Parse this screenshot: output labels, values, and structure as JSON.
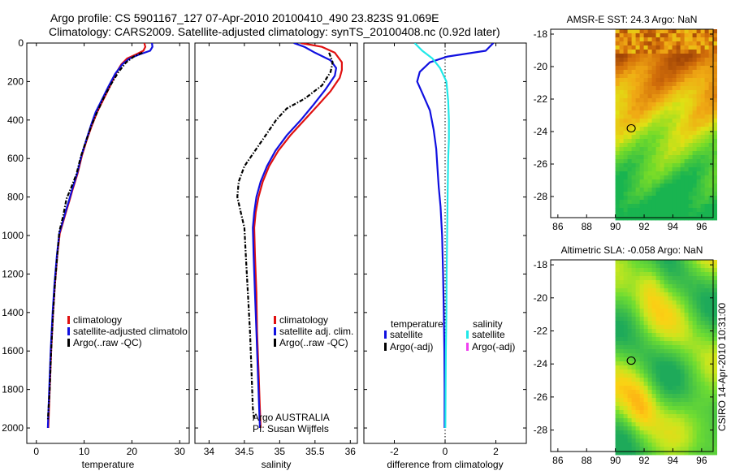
{
  "header": {
    "line1": "Argo profile: CS 5901167_127 07-Apr-2010 20100410_490 23.823S 91.069E",
    "line2": "Climatology: CARS2009. Satellite-adjusted climatology: synTS_20100408.nc (0.92d later)"
  },
  "colors": {
    "climatology": "#e01010",
    "satellite": "#1010e0",
    "argo": "#000000",
    "salinity_satellite": "#20e8e8",
    "salinity_argo": "#f040f0"
  },
  "footer": {
    "argo_owner": "Argo AUSTRALIA",
    "pi": "PI: Susan Wijffels",
    "stamp": "CSIRO 14-Apr-2010 10:31:00"
  },
  "chart_data": [
    {
      "id": "temperature",
      "type": "line",
      "xlabel": "temperature",
      "ylabel": "",
      "xlim": [
        -2,
        32
      ],
      "ylim": [
        2080,
        0
      ],
      "xticks": [
        0,
        10,
        20,
        30
      ],
      "yticks": [
        0,
        200,
        400,
        600,
        800,
        1000,
        1200,
        1400,
        1600,
        1800,
        2000
      ],
      "legend": [
        "climatology",
        "satellite-adjusted climatolo",
        "Argo(..raw -QC)"
      ],
      "series": [
        {
          "name": "climatology",
          "color": "#e01010",
          "dash": "",
          "points": [
            [
              22.6,
              0
            ],
            [
              22.8,
              20
            ],
            [
              22.4,
              40
            ],
            [
              20.8,
              60
            ],
            [
              19.0,
              80
            ],
            [
              17.8,
              110
            ],
            [
              16.6,
              160
            ],
            [
              15.3,
              230
            ],
            [
              13.9,
              300
            ],
            [
              12.7,
              360
            ],
            [
              11.6,
              430
            ],
            [
              10.6,
              500
            ],
            [
              9.6,
              580
            ],
            [
              8.6,
              680
            ],
            [
              7.6,
              760
            ],
            [
              6.9,
              820
            ],
            [
              6.3,
              870
            ],
            [
              5.6,
              930
            ],
            [
              4.9,
              990
            ],
            [
              4.4,
              1100
            ],
            [
              3.9,
              1250
            ],
            [
              3.5,
              1400
            ],
            [
              3.1,
              1600
            ],
            [
              2.8,
              1800
            ],
            [
              2.5,
              2000
            ]
          ]
        },
        {
          "name": "satellite-adjusted climatology",
          "color": "#1010e0",
          "dash": "",
          "points": [
            [
              24.2,
              0
            ],
            [
              24.3,
              20
            ],
            [
              23.8,
              40
            ],
            [
              21.5,
              60
            ],
            [
              19.5,
              80
            ],
            [
              18.0,
              110
            ],
            [
              16.5,
              160
            ],
            [
              15.0,
              230
            ],
            [
              13.6,
              300
            ],
            [
              12.4,
              360
            ],
            [
              11.4,
              430
            ],
            [
              10.5,
              500
            ],
            [
              9.5,
              580
            ],
            [
              8.5,
              680
            ],
            [
              7.5,
              760
            ],
            [
              6.8,
              820
            ],
            [
              6.2,
              870
            ],
            [
              5.5,
              930
            ],
            [
              4.8,
              990
            ],
            [
              4.3,
              1100
            ],
            [
              3.8,
              1250
            ],
            [
              3.4,
              1400
            ],
            [
              3.0,
              1600
            ],
            [
              2.7,
              1800
            ],
            [
              2.4,
              2000
            ]
          ]
        },
        {
          "name": "Argo(..raw -QC)",
          "color": "#000000",
          "dash": "5 2 1.5 2",
          "points": [
            [
              22.2,
              50
            ],
            [
              20.4,
              70
            ],
            [
              18.8,
              100
            ],
            [
              17.2,
              150
            ],
            [
              15.5,
              220
            ],
            [
              14.0,
              290
            ],
            [
              12.7,
              360
            ],
            [
              11.5,
              430
            ],
            [
              10.4,
              510
            ],
            [
              9.3,
              590
            ],
            [
              8.4,
              680
            ],
            [
              7.3,
              750
            ],
            [
              6.3,
              810
            ],
            [
              5.6,
              900
            ],
            [
              4.8,
              980
            ],
            [
              4.4,
              1100
            ],
            [
              3.9,
              1250
            ],
            [
              3.5,
              1400
            ],
            [
              3.1,
              1600
            ],
            [
              2.8,
              1800
            ],
            [
              2.4,
              1960
            ]
          ]
        }
      ]
    },
    {
      "id": "salinity",
      "type": "line",
      "xlabel": "salinity",
      "xlim": [
        33.8,
        36.1
      ],
      "ylim": [
        2080,
        0
      ],
      "xticks": [
        34,
        34.5,
        35,
        35.5,
        36
      ],
      "yticks": [
        0,
        200,
        400,
        600,
        800,
        1000,
        1200,
        1400,
        1600,
        1800,
        2000
      ],
      "legend": [
        "climatology",
        "satellite adj. clim.",
        "Argo(..raw -QC)"
      ],
      "series": [
        {
          "name": "climatology",
          "color": "#e01010",
          "dash": "",
          "points": [
            [
              35.3,
              0
            ],
            [
              35.6,
              20
            ],
            [
              35.78,
              50
            ],
            [
              35.88,
              100
            ],
            [
              35.88,
              140
            ],
            [
              35.85,
              180
            ],
            [
              35.72,
              250
            ],
            [
              35.55,
              320
            ],
            [
              35.35,
              400
            ],
            [
              35.15,
              480
            ],
            [
              34.98,
              560
            ],
            [
              34.85,
              640
            ],
            [
              34.76,
              720
            ],
            [
              34.7,
              800
            ],
            [
              34.66,
              880
            ],
            [
              34.64,
              960
            ],
            [
              34.65,
              1100
            ],
            [
              34.67,
              1300
            ],
            [
              34.68,
              1500
            ],
            [
              34.7,
              1700
            ],
            [
              34.72,
              1900
            ],
            [
              34.73,
              2000
            ]
          ]
        },
        {
          "name": "satellite adj. clim.",
          "color": "#1010e0",
          "dash": "",
          "points": [
            [
              35.2,
              0
            ],
            [
              35.35,
              20
            ],
            [
              35.5,
              50
            ],
            [
              35.72,
              90
            ],
            [
              35.8,
              130
            ],
            [
              35.78,
              170
            ],
            [
              35.65,
              240
            ],
            [
              35.48,
              320
            ],
            [
              35.3,
              400
            ],
            [
              35.1,
              480
            ],
            [
              34.94,
              560
            ],
            [
              34.82,
              640
            ],
            [
              34.73,
              720
            ],
            [
              34.67,
              800
            ],
            [
              34.64,
              880
            ],
            [
              34.62,
              960
            ],
            [
              34.63,
              1100
            ],
            [
              34.65,
              1300
            ],
            [
              34.67,
              1500
            ],
            [
              34.69,
              1700
            ],
            [
              34.71,
              1900
            ],
            [
              34.72,
              2000
            ]
          ]
        },
        {
          "name": "Argo(..raw -QC)",
          "color": "#000000",
          "dash": "5 2 1.5 2",
          "points": [
            [
              35.7,
              50
            ],
            [
              35.75,
              100
            ],
            [
              35.72,
              150
            ],
            [
              35.6,
              220
            ],
            [
              35.35,
              290
            ],
            [
              35.1,
              340
            ],
            [
              34.95,
              400
            ],
            [
              34.8,
              480
            ],
            [
              34.65,
              560
            ],
            [
              34.5,
              640
            ],
            [
              34.42,
              720
            ],
            [
              34.4,
              800
            ],
            [
              34.45,
              880
            ],
            [
              34.5,
              960
            ],
            [
              34.52,
              1100
            ],
            [
              34.55,
              1300
            ],
            [
              34.58,
              1500
            ],
            [
              34.6,
              1700
            ],
            [
              34.62,
              1900
            ],
            [
              34.64,
              1960
            ]
          ]
        }
      ]
    },
    {
      "id": "difference",
      "type": "line",
      "xlabel": "difference from climatology",
      "xlim": [
        -3.2,
        3.2
      ],
      "ylim": [
        2080,
        0
      ],
      "xticks": [
        -2,
        0,
        2
      ],
      "yticks": [
        0,
        200,
        400,
        600,
        800,
        1000,
        1200,
        1400,
        1600,
        1800,
        2000
      ],
      "legend_headers": [
        "temperature",
        "salinity"
      ],
      "legend": [
        "satellite",
        "Argo(-adj)",
        "satellite",
        "Argo(-adj)"
      ],
      "series": [
        {
          "name": "temperature satellite",
          "color": "#1010e0",
          "dash": "",
          "points": [
            [
              1.9,
              0
            ],
            [
              1.6,
              40
            ],
            [
              0.1,
              70
            ],
            [
              -0.6,
              100
            ],
            [
              -1.0,
              150
            ],
            [
              -1.1,
              200
            ],
            [
              -0.9,
              260
            ],
            [
              -0.6,
              350
            ],
            [
              -0.45,
              450
            ],
            [
              -0.35,
              550
            ],
            [
              -0.3,
              650
            ],
            [
              -0.25,
              750
            ],
            [
              -0.18,
              850
            ],
            [
              -0.12,
              1000
            ],
            [
              -0.08,
              1200
            ],
            [
              -0.05,
              1400
            ],
            [
              -0.03,
              1600
            ],
            [
              -0.02,
              1800
            ],
            [
              -0.02,
              2000
            ]
          ]
        },
        {
          "name": "salinity satellite",
          "color": "#20e8e8",
          "dash": "",
          "points": [
            [
              -1.2,
              0
            ],
            [
              -0.9,
              40
            ],
            [
              -0.5,
              80
            ],
            [
              -0.2,
              130
            ],
            [
              0.05,
              200
            ],
            [
              0.12,
              300
            ],
            [
              0.15,
              400
            ],
            [
              0.15,
              500
            ],
            [
              0.12,
              600
            ],
            [
              0.1,
              800
            ],
            [
              0.08,
              1000
            ],
            [
              0.06,
              1200
            ],
            [
              0.05,
              1400
            ],
            [
              0.03,
              1600
            ],
            [
              0.02,
              1800
            ],
            [
              0.01,
              2000
            ]
          ]
        }
      ]
    },
    {
      "id": "sst-map",
      "type": "heatmap",
      "title": "AMSR-E SST: 24.3 Argo: NaN",
      "xlim": [
        85.5,
        96.8
      ],
      "ylim": [
        -29.3,
        -17.7
      ],
      "xticks": [
        86,
        88,
        90,
        92,
        94,
        96
      ],
      "yticks": [
        -18,
        -20,
        -22,
        -24,
        -26,
        -28
      ],
      "data_lon_min": 90,
      "marker": [
        91.1,
        -23.8
      ]
    },
    {
      "id": "sla-map",
      "type": "heatmap",
      "title": "Altimetric SLA: -0.058 Argo: NaN",
      "xlim": [
        85.5,
        96.8
      ],
      "ylim": [
        -29.3,
        -17.7
      ],
      "xticks": [
        86,
        88,
        90,
        92,
        94,
        96
      ],
      "yticks": [
        -18,
        -20,
        -22,
        -24,
        -26,
        -28
      ],
      "data_lon_min": 90,
      "marker": [
        91.1,
        -23.8
      ]
    }
  ]
}
